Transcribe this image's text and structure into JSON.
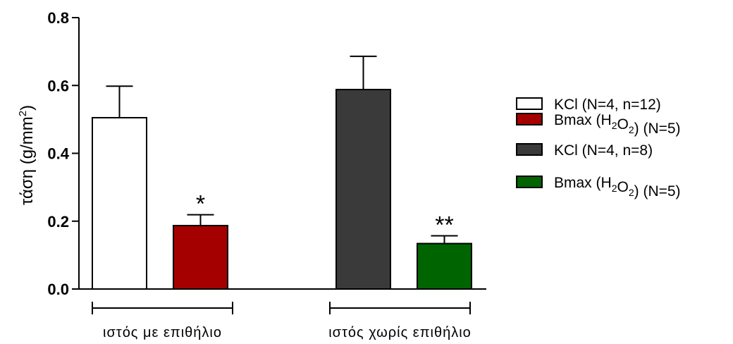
{
  "chart_data": {
    "type": "bar",
    "ylabel": "τάση (g/mm",
    "ylabel_sup": "2",
    "ylabel_end": ")",
    "ylim": [
      0,
      0.8
    ],
    "yticks": [
      "0.0",
      "0.2",
      "0.4",
      "0.6",
      "0.8"
    ],
    "grid": false,
    "legend_position": "right",
    "groups": [
      {
        "label": "ιστός με επιθήλιο"
      },
      {
        "label": "ιστός χωρίς επιθήλιο"
      }
    ],
    "bars": [
      {
        "series": 0,
        "group": 0,
        "value": 0.505,
        "error": 0.093,
        "significance": ""
      },
      {
        "series": 1,
        "group": 0,
        "value": 0.187,
        "error": 0.032,
        "significance": "*"
      },
      {
        "series": 2,
        "group": 1,
        "value": 0.588,
        "error": 0.098,
        "significance": ""
      },
      {
        "series": 3,
        "group": 1,
        "value": 0.134,
        "error": 0.023,
        "significance": "**"
      }
    ],
    "series": [
      {
        "name": "KCl (N=4, n=12)",
        "color": "#ffffff",
        "legend_parts": [
          {
            "t": "KCl (N=4, n=12)"
          }
        ]
      },
      {
        "name": "Bmax (H2O2) (N=5)",
        "color": "#a50000",
        "legend_parts": [
          {
            "t": "Bmax (H"
          },
          {
            "t": "2",
            "sub": true
          },
          {
            "t": "O"
          },
          {
            "t": "2",
            "sub": true
          },
          {
            "t": ") (N=5)"
          }
        ]
      },
      {
        "name": "KCl (N=4, n=8)",
        "color": "#3a3a3a",
        "legend_parts": [
          {
            "t": "KCl (N=4, n=8)"
          }
        ]
      },
      {
        "name": "Bmax (H2O2) (N=5)",
        "color": "#006400",
        "legend_parts": [
          {
            "t": "Bmax (H"
          },
          {
            "t": "2",
            "sub": true
          },
          {
            "t": "O"
          },
          {
            "t": "2",
            "sub": true
          },
          {
            "t": ") (N=5)"
          }
        ]
      }
    ]
  }
}
